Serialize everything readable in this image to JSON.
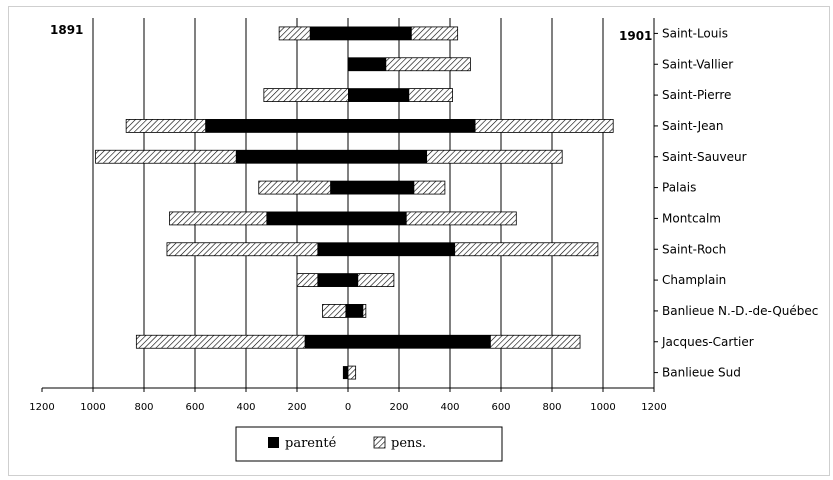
{
  "chart_data": {
    "type": "bar",
    "orientation": "horizontal-diverging",
    "left_label": "1891",
    "right_label": "1901",
    "categories": [
      "Saint-Louis",
      "Saint-Vallier",
      "Saint-Pierre",
      "Saint-Jean",
      "Saint-Sauveur",
      "Palais",
      "Montcalm",
      "Saint-Roch",
      "Champlain",
      "Banlieue N.-D.-de-Québec",
      "Jacques-Cartier",
      "Banlieue Sud"
    ],
    "xlim": [
      -1200,
      1200
    ],
    "xticks": [
      -1200,
      -1000,
      -800,
      -600,
      -400,
      -200,
      0,
      200,
      400,
      600,
      800,
      1000,
      1200
    ],
    "xtick_labels": [
      "1200",
      "1000",
      "800",
      "600",
      "400",
      "200",
      "0",
      "200",
      "400",
      "600",
      "800",
      "1000",
      "1200"
    ],
    "grid": true,
    "legend_position": "bottom",
    "series": [
      {
        "name": "parenté",
        "pattern": "solid",
        "color": "#000000",
        "left": [
          150,
          0,
          0,
          560,
          440,
          70,
          320,
          120,
          120,
          10,
          170,
          20
        ],
        "right": [
          250,
          150,
          240,
          500,
          310,
          260,
          230,
          420,
          40,
          60,
          560,
          0
        ]
      },
      {
        "name": "pens.",
        "pattern": "hatch",
        "color": "#000000",
        "left": [
          270,
          0,
          330,
          870,
          990,
          350,
          700,
          710,
          200,
          100,
          830,
          0
        ],
        "right": [
          430,
          480,
          410,
          1040,
          840,
          380,
          660,
          980,
          180,
          70,
          910,
          30
        ]
      }
    ]
  }
}
